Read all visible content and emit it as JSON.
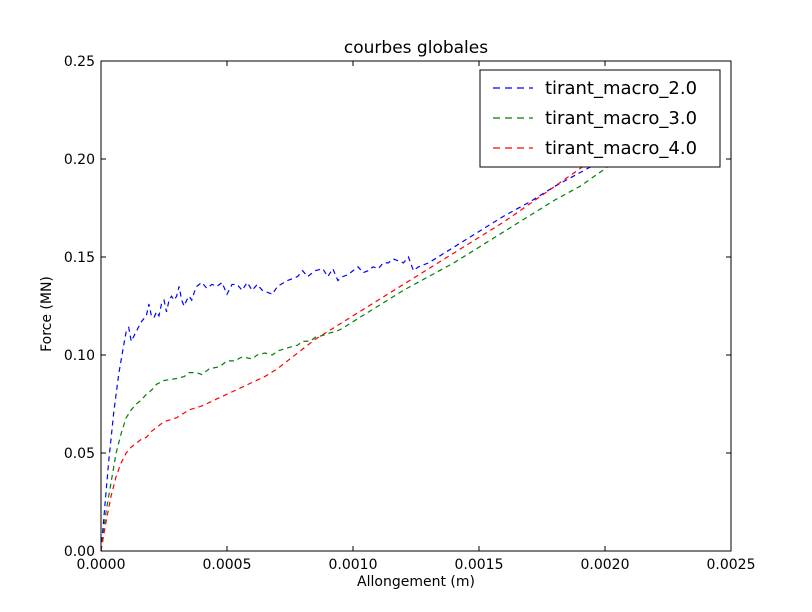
{
  "chart_data": {
    "type": "line",
    "title": "courbes globales",
    "xlabel": "Allongement (m)",
    "ylabel": "Force (MN)",
    "xlim": [
      0,
      0.0025
    ],
    "ylim": [
      0,
      0.25
    ],
    "xticks": [
      0,
      0.0005,
      0.001,
      0.0015,
      0.002,
      0.0025
    ],
    "xtick_labels": [
      "0.0000",
      "0.0005",
      "0.0010",
      "0.0015",
      "0.0020",
      "0.0025"
    ],
    "yticks": [
      0,
      0.05,
      0.1,
      0.15,
      0.2,
      0.25
    ],
    "ytick_labels": [
      "0.00",
      "0.05",
      "0.10",
      "0.15",
      "0.20",
      "0.25"
    ],
    "grid": false,
    "legend_position": "top-right",
    "line_style": "dashed",
    "series": [
      {
        "name": "tirant_macro_2.0",
        "color": "#0000ff",
        "points": [
          [
            0,
            0
          ],
          [
            1e-05,
            0.015
          ],
          [
            3e-05,
            0.045
          ],
          [
            5e-05,
            0.07
          ],
          [
            7e-05,
            0.09
          ],
          [
            9e-05,
            0.105
          ],
          [
            0.0001,
            0.112
          ],
          [
            0.00011,
            0.114
          ],
          [
            0.00012,
            0.107
          ],
          [
            0.00014,
            0.112
          ],
          [
            0.00016,
            0.117
          ],
          [
            0.00018,
            0.12
          ],
          [
            0.00019,
            0.126
          ],
          [
            0.0002,
            0.12
          ],
          [
            0.00021,
            0.119
          ],
          [
            0.00022,
            0.122
          ],
          [
            0.00023,
            0.12
          ],
          [
            0.00024,
            0.126
          ],
          [
            0.00025,
            0.128
          ],
          [
            0.00026,
            0.122
          ],
          [
            0.00027,
            0.128
          ],
          [
            0.00028,
            0.13
          ],
          [
            0.00029,
            0.128
          ],
          [
            0.0003,
            0.13
          ],
          [
            0.00031,
            0.135
          ],
          [
            0.00032,
            0.128
          ],
          [
            0.00033,
            0.125
          ],
          [
            0.00034,
            0.128
          ],
          [
            0.00035,
            0.13
          ],
          [
            0.00036,
            0.128
          ],
          [
            0.00037,
            0.132
          ],
          [
            0.00038,
            0.135
          ],
          [
            0.0004,
            0.137
          ],
          [
            0.00042,
            0.134
          ],
          [
            0.00044,
            0.136
          ],
          [
            0.00046,
            0.135
          ],
          [
            0.00048,
            0.137
          ],
          [
            0.0005,
            0.131
          ],
          [
            0.00052,
            0.136
          ],
          [
            0.00054,
            0.136
          ],
          [
            0.00056,
            0.133
          ],
          [
            0.00058,
            0.137
          ],
          [
            0.0006,
            0.133
          ],
          [
            0.00062,
            0.136
          ],
          [
            0.00064,
            0.133
          ],
          [
            0.00066,
            0.132
          ],
          [
            0.00068,
            0.131
          ],
          [
            0.0007,
            0.135
          ],
          [
            0.00074,
            0.138
          ],
          [
            0.00078,
            0.14
          ],
          [
            0.0008,
            0.143
          ],
          [
            0.00082,
            0.14
          ],
          [
            0.00085,
            0.143
          ],
          [
            0.00088,
            0.144
          ],
          [
            0.0009,
            0.14
          ],
          [
            0.00092,
            0.144
          ],
          [
            0.00094,
            0.138
          ],
          [
            0.00096,
            0.14
          ],
          [
            0.00098,
            0.141
          ],
          [
            0.001,
            0.143
          ],
          [
            0.00102,
            0.145
          ],
          [
            0.00104,
            0.142
          ],
          [
            0.00106,
            0.143
          ],
          [
            0.00108,
            0.145
          ],
          [
            0.0011,
            0.144
          ],
          [
            0.00112,
            0.147
          ],
          [
            0.00114,
            0.147
          ],
          [
            0.00116,
            0.149
          ],
          [
            0.00118,
            0.148
          ],
          [
            0.0012,
            0.147
          ],
          [
            0.00122,
            0.15
          ],
          [
            0.00124,
            0.143
          ],
          [
            0.00126,
            0.145
          ],
          [
            0.0013,
            0.147
          ],
          [
            0.0014,
            0.155
          ],
          [
            0.0015,
            0.163
          ],
          [
            0.0016,
            0.171
          ],
          [
            0.0017,
            0.178
          ],
          [
            0.0018,
            0.186
          ],
          [
            0.0019,
            0.193
          ],
          [
            0.002,
            0.2
          ]
        ]
      },
      {
        "name": "tirant_macro_3.0",
        "color": "#008000",
        "points": [
          [
            0,
            0
          ],
          [
            2e-05,
            0.02
          ],
          [
            4e-05,
            0.035
          ],
          [
            6e-05,
            0.05
          ],
          [
            8e-05,
            0.06
          ],
          [
            0.0001,
            0.068
          ],
          [
            0.00012,
            0.072
          ],
          [
            0.00014,
            0.075
          ],
          [
            0.00016,
            0.077
          ],
          [
            0.00018,
            0.08
          ],
          [
            0.0002,
            0.082
          ],
          [
            0.00022,
            0.085
          ],
          [
            0.00025,
            0.087
          ],
          [
            0.0003,
            0.088
          ],
          [
            0.00033,
            0.089
          ],
          [
            0.00035,
            0.091
          ],
          [
            0.00038,
            0.091
          ],
          [
            0.0004,
            0.09
          ],
          [
            0.00043,
            0.093
          ],
          [
            0.00047,
            0.094
          ],
          [
            0.0005,
            0.097
          ],
          [
            0.00053,
            0.097
          ],
          [
            0.00056,
            0.099
          ],
          [
            0.0006,
            0.098
          ],
          [
            0.00062,
            0.1
          ],
          [
            0.00065,
            0.101
          ],
          [
            0.00068,
            0.1
          ],
          [
            0.0007,
            0.102
          ],
          [
            0.00075,
            0.104
          ],
          [
            0.00078,
            0.105
          ],
          [
            0.0008,
            0.107
          ],
          [
            0.00083,
            0.107
          ],
          [
            0.00085,
            0.109
          ],
          [
            0.00088,
            0.11
          ],
          [
            0.0009,
            0.111
          ],
          [
            0.00093,
            0.112
          ],
          [
            0.00095,
            0.113
          ],
          [
            0.001,
            0.117
          ],
          [
            0.0011,
            0.125
          ],
          [
            0.0012,
            0.133
          ],
          [
            0.0013,
            0.14
          ],
          [
            0.0014,
            0.147
          ],
          [
            0.0015,
            0.155
          ],
          [
            0.0016,
            0.163
          ],
          [
            0.0017,
            0.171
          ],
          [
            0.0018,
            0.179
          ],
          [
            0.0019,
            0.186
          ],
          [
            0.002,
            0.195
          ],
          [
            0.00205,
            0.2
          ]
        ]
      },
      {
        "name": "tirant_macro_4.0",
        "color": "#ff0000",
        "points": [
          [
            0,
            0
          ],
          [
            2e-05,
            0.015
          ],
          [
            4e-05,
            0.028
          ],
          [
            6e-05,
            0.038
          ],
          [
            8e-05,
            0.045
          ],
          [
            0.0001,
            0.05
          ],
          [
            0.00012,
            0.053
          ],
          [
            0.00014,
            0.055
          ],
          [
            0.00016,
            0.057
          ],
          [
            0.00018,
            0.058
          ],
          [
            0.0002,
            0.061
          ],
          [
            0.00022,
            0.063
          ],
          [
            0.00025,
            0.066
          ],
          [
            0.0003,
            0.068
          ],
          [
            0.00035,
            0.072
          ],
          [
            0.0004,
            0.074
          ],
          [
            0.00045,
            0.077
          ],
          [
            0.0005,
            0.08
          ],
          [
            0.00055,
            0.083
          ],
          [
            0.0006,
            0.086
          ],
          [
            0.00065,
            0.089
          ],
          [
            0.0007,
            0.093
          ],
          [
            0.00075,
            0.098
          ],
          [
            0.0008,
            0.103
          ],
          [
            0.00085,
            0.108
          ],
          [
            0.0009,
            0.112
          ],
          [
            0.00095,
            0.116
          ],
          [
            0.001,
            0.12
          ],
          [
            0.0011,
            0.128
          ],
          [
            0.0012,
            0.136
          ],
          [
            0.0013,
            0.144
          ],
          [
            0.0014,
            0.152
          ],
          [
            0.0015,
            0.16
          ],
          [
            0.0016,
            0.168
          ],
          [
            0.0017,
            0.177
          ],
          [
            0.0018,
            0.186
          ],
          [
            0.0019,
            0.195
          ],
          [
            0.00195,
            0.2
          ]
        ]
      }
    ]
  }
}
